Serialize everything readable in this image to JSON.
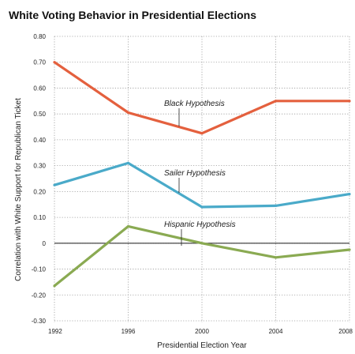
{
  "chart_data": {
    "type": "line",
    "title": "White Voting Behavior in Presidential Elections",
    "xlabel": "Presidential Election Year",
    "ylabel": "Correlation with White Support for Republican Ticket",
    "x": [
      1992,
      1996,
      2000,
      2004,
      2008
    ],
    "x_tick_labels": [
      "1992",
      "1996",
      "2000",
      "2004",
      "2008"
    ],
    "y_tick_values": [
      0.8,
      0.7,
      0.6,
      0.5,
      0.4,
      0.3,
      0.2,
      0.1,
      0,
      -0.1,
      -0.2,
      -0.3
    ],
    "y_tick_labels": [
      "0.80",
      "0.70",
      "0.60",
      "0.50",
      "0.40",
      "0.30",
      "0.20",
      "0.10",
      "0",
      "-0.10",
      "-0.20",
      "-0.30"
    ],
    "ylim": [
      -0.3,
      0.8
    ],
    "grid": true,
    "zero_line": true,
    "series": [
      {
        "name": "Black Hypothesis",
        "color": "#e4603e",
        "values": [
          0.7,
          0.505,
          0.425,
          0.55,
          0.55
        ]
      },
      {
        "name": "Sailer Hypothesis",
        "color": "#4aaac9",
        "values": [
          0.225,
          0.31,
          0.14,
          0.145,
          0.19
        ]
      },
      {
        "name": "Hispanic Hypothesis",
        "color": "#8aaa52",
        "values": [
          -0.165,
          0.065,
          0.0,
          -0.055,
          -0.025
        ]
      }
    ],
    "annotations": [
      {
        "text": "Black Hypothesis",
        "series": 0
      },
      {
        "text": "Sailer Hypothesis",
        "series": 1
      },
      {
        "text": "Hispanic Hypothesis",
        "series": 2
      }
    ]
  }
}
